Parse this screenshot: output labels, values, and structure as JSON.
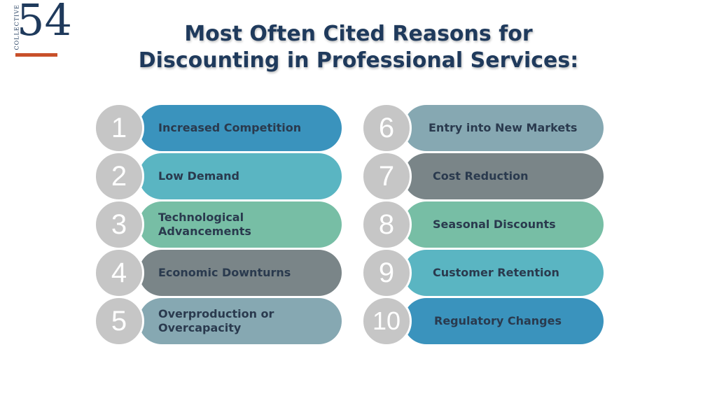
{
  "logo": {
    "side_text": "COLLECTIVE",
    "number": "54"
  },
  "title": {
    "line1": "Most Often Cited Reasons for",
    "line2": "Discounting in Professional Services:"
  },
  "items": [
    {
      "num": "1",
      "label": "Increased Competition",
      "color": "#3a93bd"
    },
    {
      "num": "2",
      "label": "Low Demand",
      "color": "#5ab5c2"
    },
    {
      "num": "3",
      "label": "Technological Advancements",
      "color": "#77bea5"
    },
    {
      "num": "4",
      "label": "Economic Downturns",
      "color": "#7a8588"
    },
    {
      "num": "5",
      "label": "Overproduction or Overcapacity",
      "color": "#86a8b2"
    },
    {
      "num": "6",
      "label": "Entry into New Markets",
      "color": "#86a8b2"
    },
    {
      "num": "7",
      "label": "Cost Reduction",
      "color": "#7a8588"
    },
    {
      "num": "8",
      "label": "Seasonal Discounts",
      "color": "#77bea5"
    },
    {
      "num": "9",
      "label": "Customer Retention",
      "color": "#5ab5c2"
    },
    {
      "num": "10",
      "label": "Regulatory Changes",
      "color": "#3a93bd"
    }
  ]
}
